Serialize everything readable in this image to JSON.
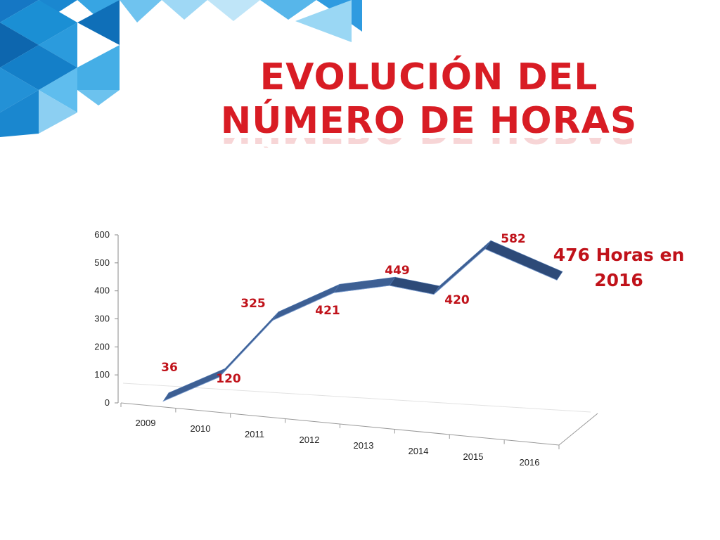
{
  "slide": {
    "title_line1": "EVOLUCIÓN DEL",
    "title_line2": "NÚMERO DE HORAS",
    "annotation_line1": "476 Horas en",
    "annotation_line2": "2016"
  },
  "colors": {
    "title": "#d81c24",
    "data_label": "#c0121a",
    "ribbon": "#3d5f93",
    "ribbon_dark": "#2d4a78",
    "deco_blue": "#1b8fd4"
  },
  "chart_data": {
    "type": "line",
    "style": "3d-ribbon",
    "categories": [
      "2009",
      "2010",
      "2011",
      "2012",
      "2013",
      "2014",
      "2015",
      "2016"
    ],
    "values": [
      36,
      120,
      325,
      421,
      449,
      420,
      582,
      476
    ],
    "data_labels": [
      "36",
      "120",
      "325",
      "421",
      "449",
      "420",
      "582",
      ""
    ],
    "ylim": [
      0,
      600
    ],
    "yticks": [
      "0",
      "100",
      "200",
      "300",
      "400",
      "500",
      "600"
    ],
    "title": "",
    "xlabel": "",
    "ylabel": "",
    "grid": false,
    "legend": "none"
  }
}
